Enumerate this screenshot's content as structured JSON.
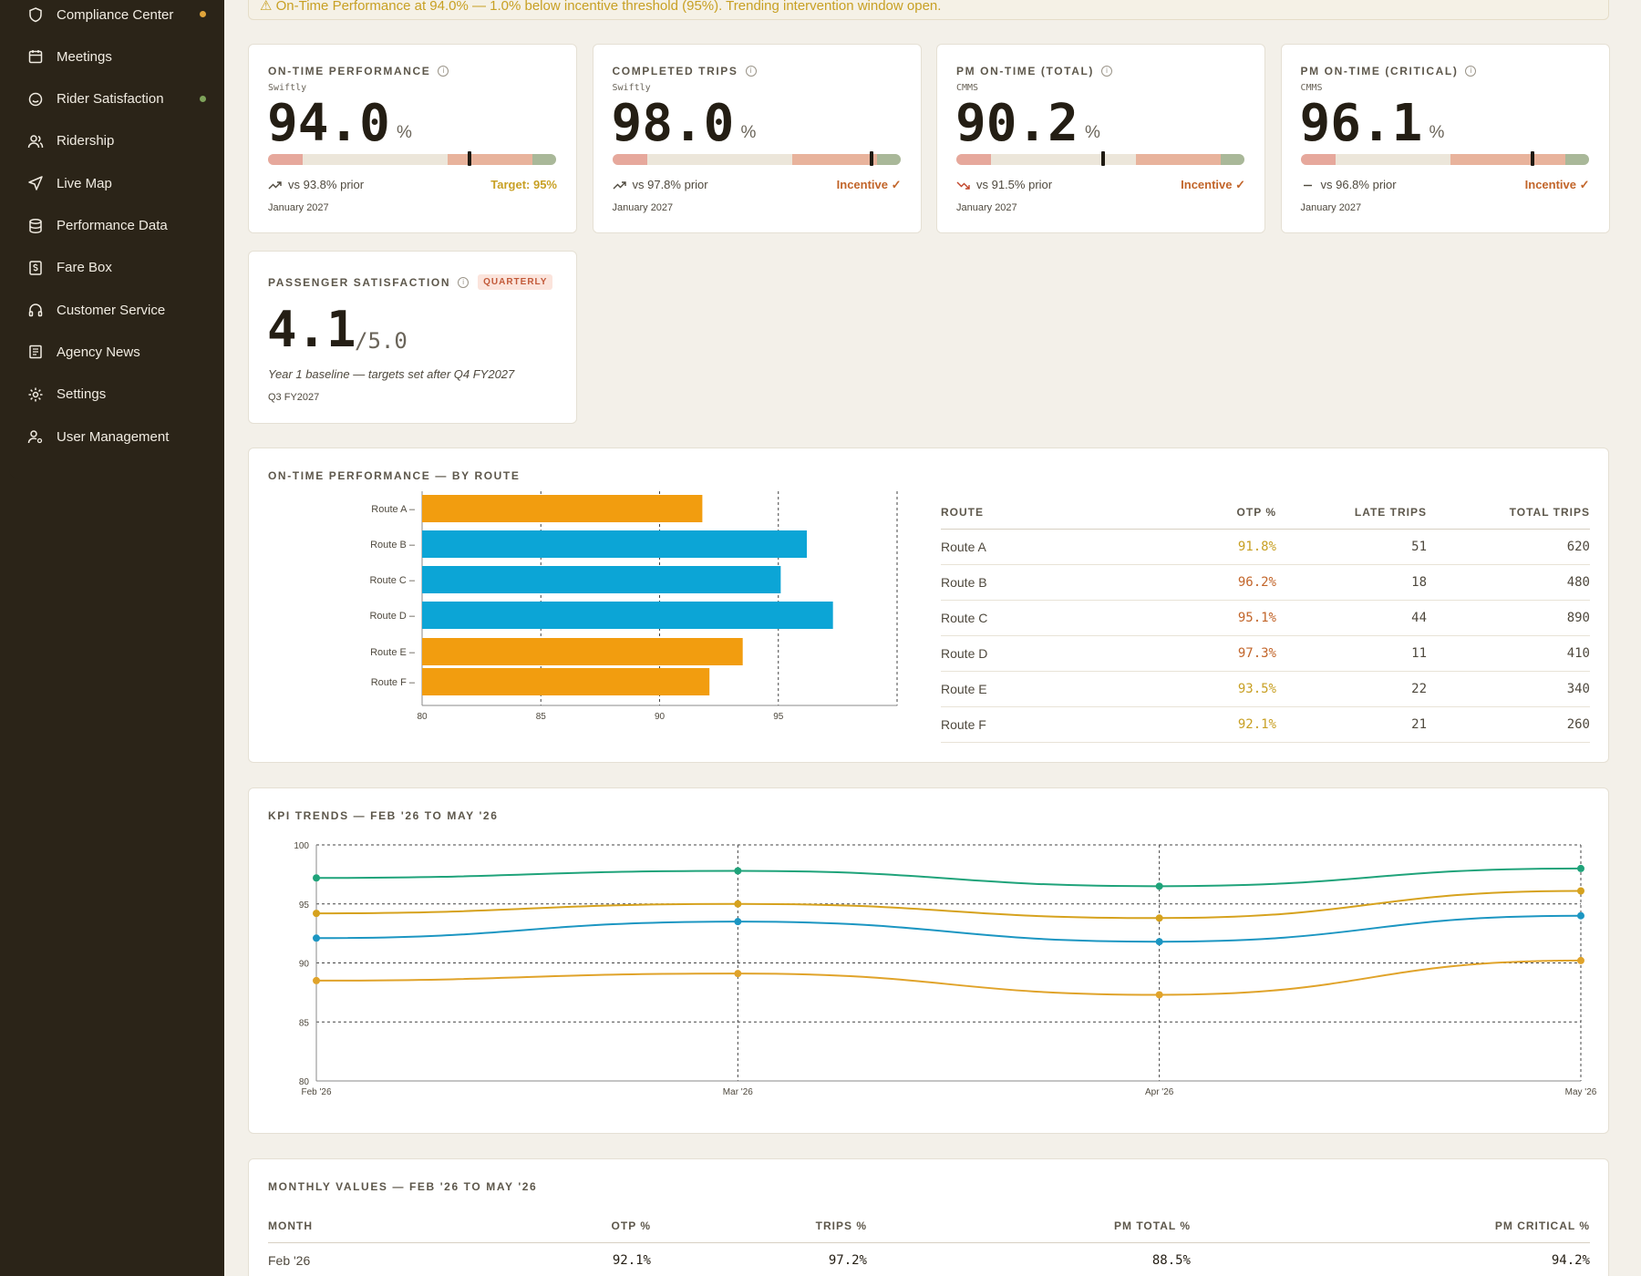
{
  "sidebar": {
    "items": [
      {
        "label": "Compliance Center",
        "icon": "shield-icon",
        "dot": "#e0a43a"
      },
      {
        "label": "Meetings",
        "icon": "calendar-icon",
        "dot": null
      },
      {
        "label": "Rider Satisfaction",
        "icon": "smile-icon",
        "dot": "#7ea35a"
      },
      {
        "label": "Ridership",
        "icon": "users-icon",
        "dot": null
      },
      {
        "label": "Live Map",
        "icon": "navigation-icon",
        "dot": null
      },
      {
        "label": "Performance Data",
        "icon": "database-icon",
        "dot": null
      },
      {
        "label": "Fare Box",
        "icon": "dollar-icon",
        "dot": null
      },
      {
        "label": "Customer Service",
        "icon": "headphones-icon",
        "dot": null
      },
      {
        "label": "Agency News",
        "icon": "newspaper-icon",
        "dot": null
      },
      {
        "label": "Settings",
        "icon": "gear-icon",
        "dot": null
      },
      {
        "label": "User Management",
        "icon": "user-cog-icon",
        "dot": null
      }
    ]
  },
  "alert": {
    "text": "⚠ On-Time Performance at 94.0% — 1.0% below incentive threshold (95%). Trending intervention window open."
  },
  "kpis": [
    {
      "title": "ON-TIME PERFORMANCE",
      "source": "Swiftly",
      "value": "94.0",
      "unit": "%",
      "prior": "vs 93.8% prior",
      "trend": "up",
      "target": "Target: 95%",
      "target_color": "#c8a024",
      "period": "January 2027",
      "marker": 0.94
    },
    {
      "title": "COMPLETED TRIPS",
      "source": "Swiftly",
      "value": "98.0",
      "unit": "%",
      "prior": "vs 97.8% prior",
      "trend": "up",
      "target": "Incentive ✓",
      "target_color": "#c2652a",
      "period": "January 2027",
      "marker": 0.98
    },
    {
      "title": "PM ON-TIME (TOTAL)",
      "source": "CMMS",
      "value": "90.2",
      "unit": "%",
      "prior": "vs 91.5% prior",
      "trend": "down",
      "target": "Incentive ✓",
      "target_color": "#c2652a",
      "period": "January 2027",
      "marker": 0.902
    },
    {
      "title": "PM ON-TIME (CRITICAL)",
      "source": "CMMS",
      "value": "96.1",
      "unit": "%",
      "prior": "vs 96.8% prior",
      "trend": "flat",
      "target": "Incentive ✓",
      "target_color": "#c2652a",
      "period": "January 2027",
      "marker": 0.961
    }
  ],
  "satisfaction": {
    "title": "PASSENGER SATISFACTION",
    "badge": "QUARTERLY",
    "value": "4.1",
    "scale": "/5.0",
    "note": "Year 1 baseline — targets set after Q4 FY2027",
    "period": "Q3 FY2027"
  },
  "otp_by_route": {
    "title": "ON-TIME PERFORMANCE — BY ROUTE",
    "table": {
      "headers": [
        "ROUTE",
        "OTP %",
        "LATE TRIPS",
        "TOTAL TRIPS"
      ],
      "rows": [
        {
          "route": "Route A",
          "otp": "91.8%",
          "late": "51",
          "total": "620",
          "color": "#c8a024"
        },
        {
          "route": "Route B",
          "otp": "96.2%",
          "late": "18",
          "total": "480",
          "color": "#c2652a"
        },
        {
          "route": "Route C",
          "otp": "95.1%",
          "late": "44",
          "total": "890",
          "color": "#c2652a"
        },
        {
          "route": "Route D",
          "otp": "97.3%",
          "late": "11",
          "total": "410",
          "color": "#c2652a"
        },
        {
          "route": "Route E",
          "otp": "93.5%",
          "late": "22",
          "total": "340",
          "color": "#c8a024"
        },
        {
          "route": "Route F",
          "otp": "92.1%",
          "late": "21",
          "total": "260",
          "color": "#c8a024"
        }
      ]
    }
  },
  "kpi_trends": {
    "title": "KPI TRENDS — FEB '26 TO MAY '26"
  },
  "monthly": {
    "title": "MONTHLY VALUES — FEB '26 TO MAY '26",
    "headers": [
      "MONTH",
      "OTP %",
      "TRIPS %",
      "PM TOTAL %",
      "PM CRITICAL %"
    ],
    "rows": [
      {
        "month": "Feb '26",
        "otp": "92.1%",
        "trips": "97.2%",
        "pm_total": "88.5%",
        "pm_critical": "94.2%"
      }
    ]
  },
  "chart_data": [
    {
      "type": "bar",
      "orientation": "horizontal",
      "categories": [
        "Route A",
        "Route B",
        "Route C",
        "Route D",
        "Route E",
        "Route F"
      ],
      "values": [
        91.8,
        96.2,
        95.1,
        97.3,
        93.5,
        92.1
      ],
      "colors": [
        "#f29d0f",
        "#0ca5d6",
        "#0ca5d6",
        "#0ca5d6",
        "#f29d0f",
        "#f29d0f"
      ],
      "xlim": [
        80,
        100
      ],
      "xticks": [
        "80",
        "85",
        "90",
        "95"
      ],
      "grid": true
    },
    {
      "type": "line",
      "x": [
        "Feb '26",
        "Mar '26",
        "Apr '26",
        "May '26"
      ],
      "series": [
        {
          "color": "#1fa37a",
          "values": [
            97.2,
            97.8,
            96.5,
            98.0
          ]
        },
        {
          "color": "#d6a21e",
          "values": [
            94.2,
            95.0,
            93.8,
            96.1
          ]
        },
        {
          "color": "#1c96c2",
          "values": [
            92.1,
            93.5,
            91.8,
            94.0
          ]
        },
        {
          "color": "#e0a32a",
          "values": [
            88.5,
            89.1,
            87.3,
            90.2
          ]
        }
      ],
      "ylim": [
        80,
        100
      ],
      "yticks": [
        "80",
        "85",
        "90",
        "95",
        "100"
      ],
      "grid": true
    }
  ]
}
